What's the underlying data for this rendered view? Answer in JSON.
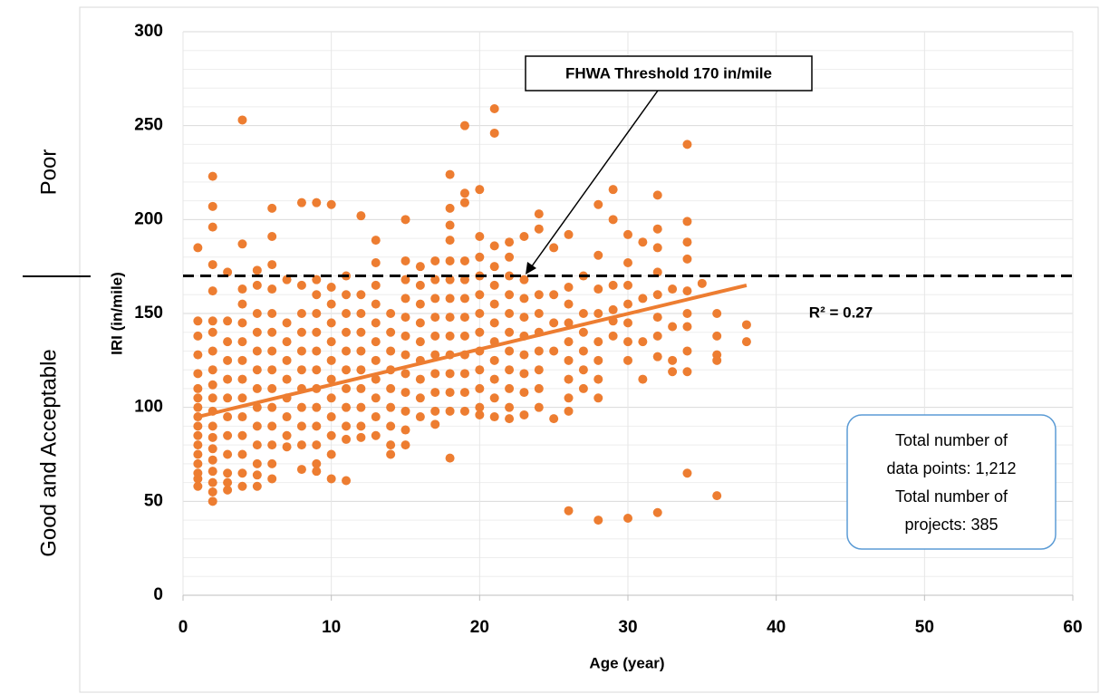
{
  "chart_data": {
    "type": "scatter",
    "x_label": "Age (year)",
    "y_label": "IRI (in/mile)",
    "color": "#ed7d31",
    "xlim": [
      0,
      60
    ],
    "xticks": [
      0,
      10,
      20,
      30,
      40,
      50,
      60
    ],
    "ylim": [
      0,
      300
    ],
    "yticks": [
      0,
      50,
      100,
      150,
      200,
      250,
      300
    ],
    "y_minor_ticks": [
      10,
      20,
      30,
      40,
      60,
      70,
      80,
      90,
      110,
      120,
      130,
      140,
      160,
      170,
      180,
      190,
      210,
      220,
      230,
      240,
      260,
      270,
      280,
      290
    ],
    "grid": true,
    "groups": [
      {
        "x": 1,
        "values": [
          185,
          146,
          138,
          128,
          118,
          110,
          105,
          100,
          95,
          90,
          85,
          80,
          75,
          70,
          65,
          62,
          58
        ]
      },
      {
        "x": 2,
        "values": [
          223,
          207,
          196,
          176,
          162,
          146,
          140,
          130,
          120,
          112,
          105,
          98,
          90,
          84,
          78,
          72,
          66,
          60,
          55,
          50
        ]
      },
      {
        "x": 3,
        "values": [
          172,
          146,
          135,
          125,
          115,
          105,
          95,
          85,
          75,
          65,
          60,
          56
        ]
      },
      {
        "x": 4,
        "values": [
          253,
          187,
          163,
          155,
          145,
          135,
          125,
          115,
          105,
          95,
          85,
          75,
          65,
          58
        ]
      },
      {
        "x": 5,
        "values": [
          173,
          165,
          150,
          140,
          130,
          120,
          110,
          100,
          90,
          80,
          70,
          64,
          58
        ]
      },
      {
        "x": 6,
        "values": [
          206,
          191,
          176,
          163,
          150,
          140,
          130,
          120,
          110,
          100,
          90,
          80,
          70,
          62
        ]
      },
      {
        "x": 7,
        "values": [
          168,
          145,
          135,
          125,
          115,
          105,
          95,
          85,
          79
        ]
      },
      {
        "x": 8,
        "values": [
          209,
          165,
          150,
          140,
          130,
          120,
          110,
          100,
          90,
          80,
          67
        ]
      },
      {
        "x": 9,
        "values": [
          209,
          168,
          160,
          150,
          140,
          130,
          120,
          110,
          100,
          90,
          80,
          70,
          66
        ]
      },
      {
        "x": 10,
        "values": [
          208,
          164,
          155,
          145,
          135,
          125,
          115,
          105,
          95,
          85,
          75,
          62
        ]
      },
      {
        "x": 11,
        "values": [
          170,
          160,
          150,
          140,
          130,
          120,
          110,
          100,
          90,
          83,
          61
        ]
      },
      {
        "x": 12,
        "values": [
          202,
          160,
          150,
          140,
          130,
          120,
          110,
          100,
          90,
          84
        ]
      },
      {
        "x": 13,
        "values": [
          189,
          177,
          165,
          155,
          145,
          135,
          125,
          115,
          105,
          95,
          85
        ]
      },
      {
        "x": 14,
        "values": [
          150,
          140,
          130,
          120,
          110,
          100,
          90,
          80,
          75
        ]
      },
      {
        "x": 15,
        "values": [
          200,
          178,
          168,
          158,
          148,
          138,
          128,
          118,
          108,
          98,
          88,
          80
        ]
      },
      {
        "x": 16,
        "values": [
          175,
          165,
          155,
          145,
          135,
          125,
          115,
          105,
          95
        ]
      },
      {
        "x": 17,
        "values": [
          178,
          168,
          158,
          148,
          138,
          128,
          118,
          108,
          98,
          91
        ]
      },
      {
        "x": 18,
        "values": [
          224,
          206,
          197,
          189,
          178,
          168,
          158,
          148,
          138,
          128,
          118,
          108,
          98,
          73
        ]
      },
      {
        "x": 19,
        "values": [
          250,
          214,
          209,
          178,
          168,
          158,
          148,
          138,
          128,
          118,
          108,
          98
        ]
      },
      {
        "x": 20,
        "values": [
          216,
          191,
          180,
          170,
          160,
          150,
          140,
          130,
          120,
          110,
          100,
          96
        ]
      },
      {
        "x": 21,
        "values": [
          259,
          246,
          186,
          175,
          165,
          155,
          145,
          135,
          125,
          115,
          105,
          95
        ]
      },
      {
        "x": 22,
        "values": [
          188,
          180,
          170,
          160,
          150,
          140,
          130,
          120,
          110,
          100,
          94
        ]
      },
      {
        "x": 23,
        "values": [
          191,
          168,
          158,
          148,
          138,
          128,
          118,
          108,
          96
        ]
      },
      {
        "x": 24,
        "values": [
          203,
          195,
          160,
          150,
          140,
          130,
          120,
          110,
          100
        ]
      },
      {
        "x": 25,
        "values": [
          185,
          160,
          145,
          130,
          94
        ]
      },
      {
        "x": 26,
        "values": [
          192,
          164,
          155,
          145,
          135,
          125,
          115,
          105,
          98,
          45
        ]
      },
      {
        "x": 27,
        "values": [
          170,
          150,
          140,
          130,
          120,
          110
        ]
      },
      {
        "x": 28,
        "values": [
          208,
          181,
          163,
          150,
          135,
          125,
          115,
          105,
          40
        ]
      },
      {
        "x": 29,
        "values": [
          216,
          200,
          165,
          152,
          146,
          138
        ]
      },
      {
        "x": 30,
        "values": [
          192,
          177,
          165,
          155,
          145,
          135,
          125,
          41
        ]
      },
      {
        "x": 31,
        "values": [
          188,
          158,
          135,
          115
        ]
      },
      {
        "x": 32,
        "values": [
          213,
          195,
          185,
          172,
          160,
          148,
          138,
          127,
          44
        ]
      },
      {
        "x": 33,
        "values": [
          163,
          143,
          125,
          119
        ]
      },
      {
        "x": 34,
        "values": [
          240,
          199,
          188,
          179,
          162,
          150,
          143,
          130,
          119,
          65
        ]
      },
      {
        "x": 35,
        "values": [
          166
        ]
      },
      {
        "x": 36,
        "values": [
          150,
          138,
          128,
          125,
          53
        ]
      },
      {
        "x": 38,
        "values": [
          144,
          135
        ]
      }
    ],
    "trendline": {
      "x": [
        1,
        38
      ],
      "values": [
        95,
        165
      ]
    },
    "threshold": 170,
    "threshold_label": "FHWA Threshold 170 in/mile",
    "r_squared_label": "R² = 0.27",
    "note_lines": [
      "Total number of",
      "data points: 1,212",
      "Total number of",
      "projects: 385"
    ],
    "zone_labels": [
      "Poor",
      "Good and Acceptable"
    ]
  }
}
